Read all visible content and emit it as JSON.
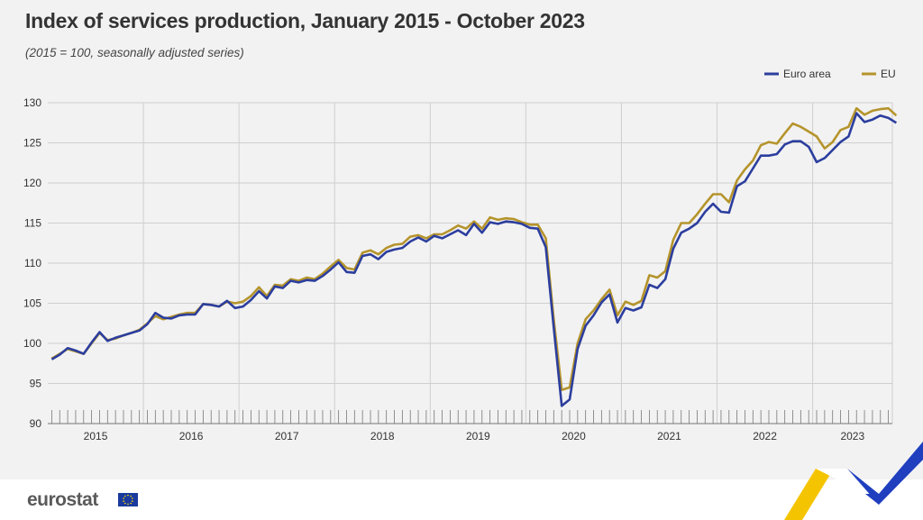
{
  "header": {
    "title": "Index of services production, January 2015 - October 2023",
    "subtitle": "(2015 = 100, seasonally adjusted series)"
  },
  "footer": {
    "logo_text": "eurostat"
  },
  "colors": {
    "euro_area": "#2c3e9e",
    "eu": "#b5942c",
    "grid": "#cfcfcf",
    "axis": "#777777"
  },
  "chart_data": {
    "type": "line",
    "title": "Index of services production, January 2015 - October 2023",
    "subtitle": "(2015 = 100, seasonally adjusted series)",
    "x_start": "2015-01",
    "x_end": "2023-10",
    "x_ticks": [
      "2015",
      "2016",
      "2017",
      "2018",
      "2019",
      "2020",
      "2021",
      "2022",
      "2023"
    ],
    "ylim": [
      90,
      130
    ],
    "y_ticks": [
      90,
      95,
      100,
      105,
      110,
      115,
      120,
      125,
      130
    ],
    "grid": true,
    "legend": "top-right",
    "series": [
      {
        "name": "Euro area",
        "values": [
          98.0,
          98.6,
          99.4,
          99.1,
          98.7,
          100.1,
          101.4,
          100.3,
          100.7,
          101.0,
          101.3,
          101.6,
          102.4,
          103.8,
          103.2,
          103.1,
          103.5,
          103.6,
          103.6,
          104.9,
          104.8,
          104.6,
          105.3,
          104.4,
          104.6,
          105.4,
          106.5,
          105.6,
          107.1,
          106.9,
          107.8,
          107.6,
          107.9,
          107.8,
          108.4,
          109.2,
          110.1,
          108.9,
          108.8,
          110.9,
          111.1,
          110.5,
          111.4,
          111.7,
          111.9,
          112.7,
          113.2,
          112.7,
          113.4,
          113.1,
          113.6,
          114.1,
          113.5,
          114.9,
          113.8,
          115.1,
          114.9,
          115.2,
          115.1,
          114.9,
          114.4,
          114.3,
          112.0,
          102.0,
          92.2,
          93.0,
          99.3,
          102.2,
          103.5,
          105.1,
          106.1,
          102.6,
          104.4,
          104.1,
          104.5,
          107.3,
          106.9,
          108.0,
          111.8,
          113.8,
          114.3,
          115.0,
          116.4,
          117.4,
          116.4,
          116.3,
          119.6,
          120.2,
          121.8,
          123.4,
          123.4,
          123.6,
          124.8,
          125.2,
          125.2,
          124.5,
          122.6,
          123.1,
          124.1,
          125.1,
          125.8,
          128.7,
          127.6,
          127.9,
          128.4,
          128.1,
          127.5
        ]
      },
      {
        "name": "EU",
        "values": [
          98.1,
          98.7,
          99.3,
          99.0,
          98.7,
          100.0,
          101.3,
          100.4,
          100.6,
          101.0,
          101.3,
          101.7,
          102.5,
          103.4,
          103.0,
          103.3,
          103.6,
          103.8,
          103.8,
          104.9,
          104.8,
          104.6,
          105.2,
          105.0,
          105.2,
          105.9,
          107.0,
          105.9,
          107.3,
          107.2,
          108.0,
          107.8,
          108.2,
          108.0,
          108.7,
          109.6,
          110.4,
          109.4,
          109.2,
          111.3,
          111.6,
          111.1,
          111.9,
          112.3,
          112.4,
          113.3,
          113.5,
          113.1,
          113.6,
          113.6,
          114.1,
          114.7,
          114.3,
          115.2,
          114.3,
          115.7,
          115.4,
          115.6,
          115.5,
          115.1,
          114.8,
          114.8,
          113.1,
          103.0,
          94.2,
          94.5,
          100.0,
          103.0,
          104.1,
          105.5,
          106.7,
          103.5,
          105.2,
          104.8,
          105.3,
          108.5,
          108.2,
          109.0,
          112.9,
          115.0,
          115.0,
          116.1,
          117.4,
          118.6,
          118.6,
          117.6,
          120.3,
          121.7,
          122.8,
          124.7,
          125.1,
          124.9,
          126.2,
          127.4,
          127.0,
          126.4,
          125.8,
          124.3,
          125.1,
          126.6,
          127.0,
          129.3,
          128.5,
          129.0,
          129.2,
          129.3,
          128.4
        ]
      }
    ]
  }
}
